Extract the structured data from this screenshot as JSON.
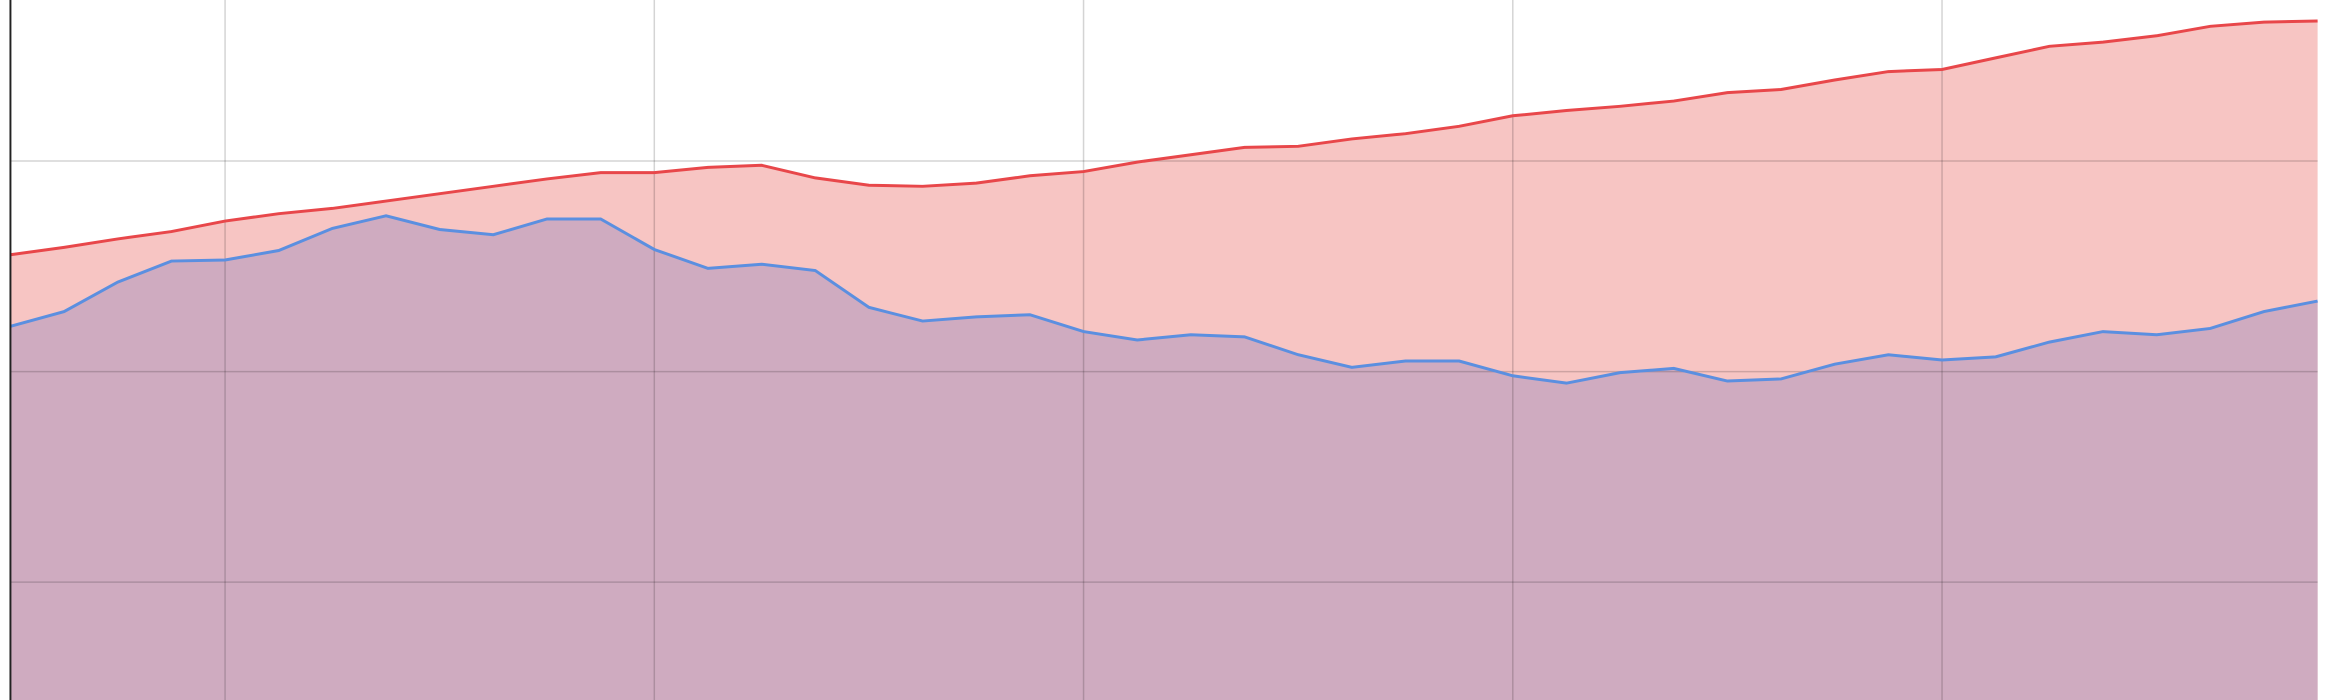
{
  "chart_data": {
    "type": "area",
    "x": [
      0,
      1,
      2,
      3,
      4,
      5,
      6,
      7,
      8,
      9,
      10,
      11,
      12,
      13,
      14,
      15,
      16,
      17,
      18,
      19,
      20,
      21,
      22,
      23,
      24,
      25,
      26,
      27,
      28,
      29,
      30,
      31,
      32,
      33,
      34,
      35,
      36,
      37,
      38,
      39,
      40,
      41,
      42,
      43
    ],
    "xlim": [
      0,
      43
    ],
    "xticks": [
      4,
      12,
      20,
      28,
      36
    ],
    "ylim": [
      8.8,
      75.3
    ],
    "yticks": [
      20,
      40,
      60
    ],
    "grid": true,
    "series": [
      {
        "color": "#e8474a",
        "fill": "#f7c5c3",
        "values": [
          51.1,
          51.8,
          52.6,
          53.3,
          54.3,
          55.0,
          55.5,
          56.2,
          56.9,
          57.6,
          58.3,
          58.9,
          58.9,
          59.4,
          59.6,
          58.4,
          57.7,
          57.6,
          57.9,
          58.6,
          59.0,
          59.9,
          60.6,
          61.3,
          61.4,
          62.1,
          62.6,
          63.3,
          64.3,
          64.8,
          65.2,
          65.7,
          66.5,
          66.8,
          67.7,
          68.5,
          68.7,
          69.8,
          70.9,
          71.3,
          71.9,
          72.8,
          73.2,
          73.3
        ]
      },
      {
        "color": "#5b8fe0",
        "fill": "#cfabc0",
        "values": [
          44.3,
          45.7,
          48.5,
          50.5,
          50.6,
          51.5,
          53.6,
          54.8,
          53.5,
          53.0,
          54.5,
          54.5,
          51.6,
          49.8,
          50.2,
          49.6,
          46.1,
          44.8,
          45.2,
          45.4,
          43.8,
          43.0,
          43.5,
          43.3,
          41.6,
          40.4,
          41.0,
          41.0,
          39.6,
          38.9,
          39.9,
          40.3,
          39.1,
          39.3,
          40.7,
          41.6,
          41.1,
          41.4,
          42.8,
          43.8,
          43.5,
          44.1,
          45.7,
          46.7
        ]
      }
    ]
  }
}
